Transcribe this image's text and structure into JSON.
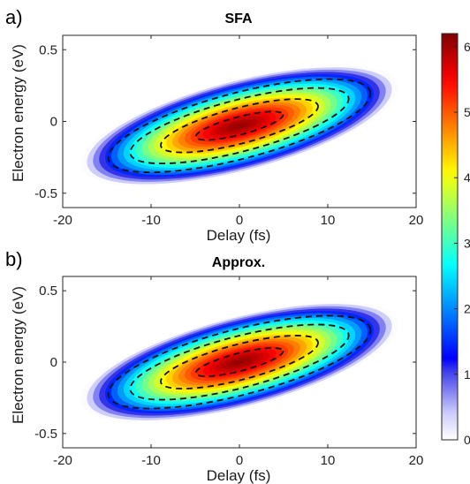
{
  "chart_data": [
    {
      "panel_label": "a)",
      "title": "SFA",
      "type": "heatmap",
      "xlabel": "Delay (fs)",
      "ylabel": "Electron energy (eV)",
      "xlim": [
        -20,
        20
      ],
      "ylim": [
        -0.6,
        0.6
      ],
      "xticks": [
        -20,
        -10,
        0,
        10,
        20
      ],
      "yticks": [
        -0.5,
        0,
        0.5
      ],
      "peak": {
        "delay": 0,
        "energy": -0.03,
        "value": 6.2
      },
      "fill_region": {
        "delay_half_extent": 18.5,
        "energy_half_extent": 0.52,
        "tilt_energy_per_fs": -0.016
      },
      "dashed_contours": [
        {
          "delay_half_extent": 5.0,
          "energy_half_extent": 0.1
        },
        {
          "delay_half_extent": 9.0,
          "energy_half_extent": 0.2
        },
        {
          "delay_half_extent": 12.5,
          "energy_half_extent": 0.29
        },
        {
          "delay_half_extent": 15.0,
          "energy_half_extent": 0.37
        }
      ]
    },
    {
      "panel_label": "b)",
      "title": "Approx.",
      "type": "heatmap",
      "xlabel": "Delay (fs)",
      "ylabel": "Electron energy (eV)",
      "xlim": [
        -20,
        20
      ],
      "ylim": [
        -0.6,
        0.6
      ],
      "xticks": [
        -20,
        -10,
        0,
        10,
        20
      ],
      "yticks": [
        -0.5,
        0,
        0.5
      ],
      "peak": {
        "delay": 0,
        "energy": 0.0,
        "value": 6.2
      },
      "fill_region": {
        "delay_half_extent": 18.5,
        "energy_half_extent": 0.52,
        "tilt_energy_per_fs": -0.016
      },
      "dashed_contours": [
        {
          "delay_half_extent": 5.0,
          "energy_half_extent": 0.1
        },
        {
          "delay_half_extent": 9.0,
          "energy_half_extent": 0.2
        },
        {
          "delay_half_extent": 12.5,
          "energy_half_extent": 0.29
        },
        {
          "delay_half_extent": 15.0,
          "energy_half_extent": 0.37
        }
      ]
    }
  ],
  "colorbar": {
    "min": 0,
    "max": 6.2,
    "ticks": [
      0,
      1,
      2,
      3,
      4,
      5,
      6
    ],
    "colormap": "jet",
    "low_color": "#ffffff"
  }
}
